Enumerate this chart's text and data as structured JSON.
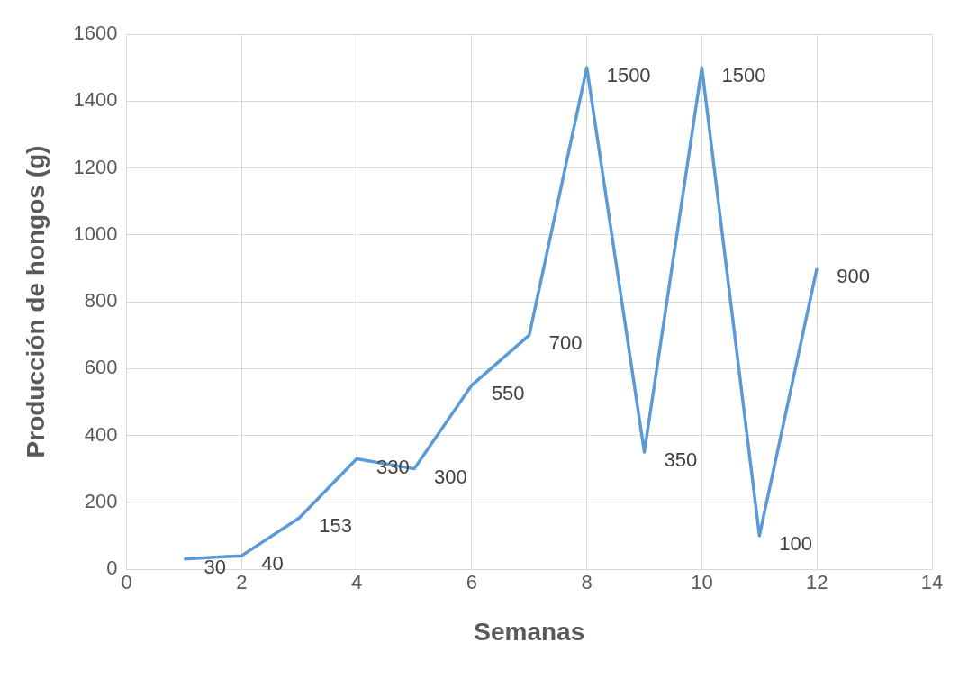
{
  "chart_data": {
    "type": "line",
    "xlabel": "Semanas",
    "ylabel": "Producción de hongos (g)",
    "x": [
      1,
      2,
      3,
      4,
      5,
      6,
      7,
      8,
      9,
      10,
      11,
      12
    ],
    "series": [
      {
        "color": "#5b9bd5",
        "values": [
          30,
          40,
          153,
          330,
          300,
          550,
          700,
          1500,
          350,
          1500,
          100,
          900
        ]
      }
    ],
    "xlim": [
      0,
      14
    ],
    "xticks": [
      0,
      2,
      4,
      6,
      8,
      10,
      12,
      14
    ],
    "ylim": [
      0,
      1600
    ],
    "yticks": [
      0,
      200,
      400,
      600,
      800,
      1000,
      1200,
      1400,
      1600
    ],
    "grid": true,
    "legend": false,
    "marker": "none",
    "line_style": "solid",
    "data_labels": true
  }
}
